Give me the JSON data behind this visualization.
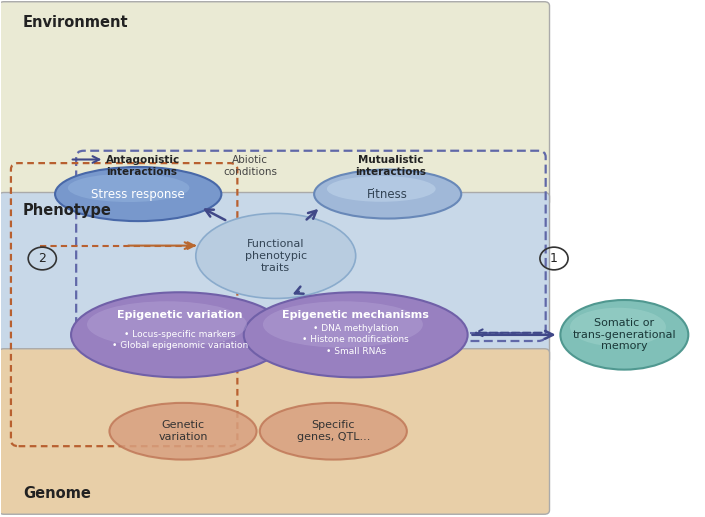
{
  "fig_width": 7.05,
  "fig_height": 5.17,
  "dpi": 100,
  "bg_color": "#ffffff",
  "env_bg": "#eaead4",
  "pheno_bg": "#c8d8e8",
  "genome_bg": "#e8cfa8",
  "env_label": "Environment",
  "pheno_label": "Phenotype",
  "genome_label": "Genome",
  "stress_response": "Stress response",
  "fitness": "Fitness",
  "functional_traits": "Functional\nphenotypic\ntraits",
  "epigenetic_variation": "Epigenetic variation",
  "epigenetic_var_bullets": "• Locus-specific markers\n• Global epigenomic variation",
  "epigenetic_mechanisms": "Epigenetic mechanisms",
  "epigenetic_mech_bullets": "• DNA methylation\n• Histone modifications\n• Small RNAs",
  "genetic_variation": "Genetic\nvariation",
  "specific_genes": "Specific\ngenes, QTL...",
  "somatic_memory": "Somatic or\ntrans-generational\nmemory",
  "antagonistic": "Antagonistic\ninteractions",
  "abiotic": "Abiotic\nconditions",
  "mutualistic": "Mutualistic\ninteractions",
  "circle1": "1",
  "circle2": "2",
  "stress_face": "#7898cc",
  "stress_edge": "#4868a8",
  "fitness_face": "#a0b8d8",
  "fitness_edge": "#6888b8",
  "func_face": "#b8cce0",
  "func_edge": "#8aabcc",
  "epiv_face": "#9880c0",
  "epiv_edge": "#7060a8",
  "epim_face": "#9880c0",
  "epim_edge": "#7060a8",
  "teal_face": "#80c0b8",
  "teal_edge": "#509890",
  "salmon_face": "#d8a080",
  "salmon_edge": "#c07858",
  "arrow_dark_blue": "#404888",
  "arrow_orange": "#b86830",
  "dashed_blue": "#6068a8",
  "dashed_orange": "#b86030"
}
